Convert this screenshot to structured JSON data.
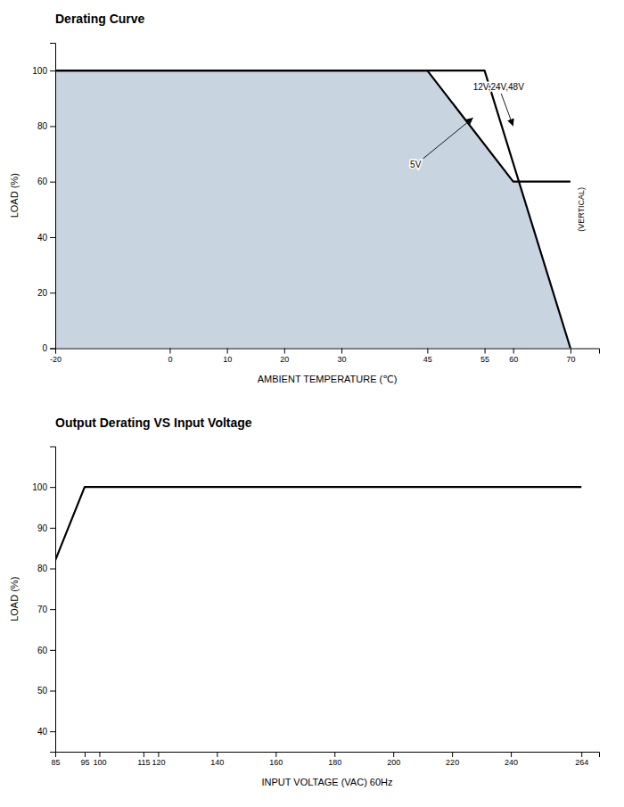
{
  "chart_data": [
    {
      "type": "area",
      "title": "Derating Curve",
      "x_label": "AMBIENT TEMPERATURE (℃)",
      "y_label": "LOAD (%)",
      "color": "#c8d4e0",
      "series": [
        {
          "x": [
            -20,
            45,
            60,
            70
          ],
          "values": [
            100,
            100,
            60,
            60
          ],
          "color": "#000000"
        },
        {
          "x": [
            -20,
            45,
            55,
            70
          ],
          "values": [
            100,
            100,
            100,
            0
          ],
          "color": "#000000"
        }
      ],
      "xlim": [
        -20,
        75
      ],
      "xticks": [
        -20,
        0,
        10,
        20,
        30,
        45,
        55,
        60,
        70
      ],
      "ylim": [
        0,
        110
      ],
      "yticks": [
        0,
        20,
        40,
        60,
        80,
        100
      ],
      "grid": false,
      "annotations": [
        {
          "text": "12V,24V,48V",
          "x": 53,
          "y": 93,
          "arrow_x": 60,
          "arrow_y": 80
        },
        {
          "text": "5V",
          "x": 42,
          "y": 65,
          "arrow_x": 53,
          "arrow_y": 83
        },
        {
          "text": "(VERTICAL)",
          "x": 72,
          "y": 50
        }
      ]
    },
    {
      "type": "line",
      "title": "Output Derating VS Input Voltage",
      "x_label": "INPUT VOLTAGE (VAC) 60Hz",
      "y_label": "LOAD (%)",
      "series": [
        {
          "x": [
            85,
            95,
            100,
            264
          ],
          "values": [
            82,
            100,
            100,
            100
          ],
          "color": "#000000"
        }
      ],
      "xlim": [
        85,
        270
      ],
      "xticks": [
        85,
        95,
        100,
        115,
        120,
        140,
        160,
        180,
        200,
        220,
        240,
        264
      ],
      "ylim": [
        35,
        110
      ],
      "yticks": [
        40,
        50,
        60,
        70,
        80,
        90,
        100
      ],
      "grid": false
    }
  ]
}
